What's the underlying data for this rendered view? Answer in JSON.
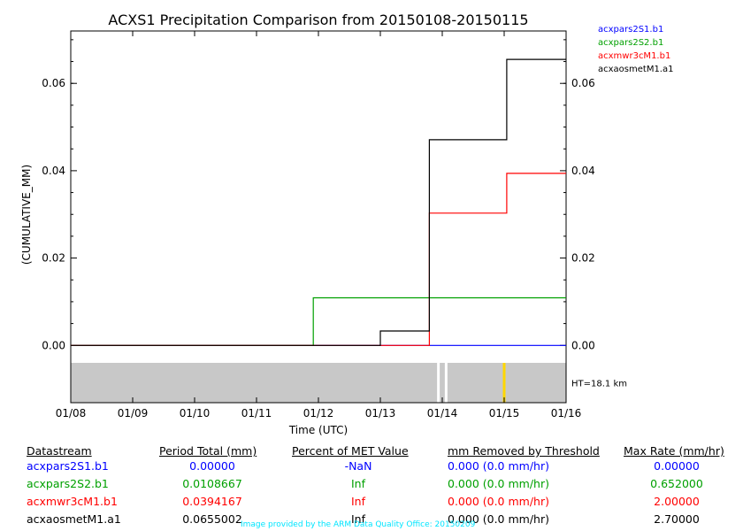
{
  "chart_data": {
    "type": "line",
    "title": "ACXS1 Precipitation Comparison from 20150108-20150115",
    "xlabel": "Time (UTC)",
    "ylabel": "(CUMULATIVE_MM)",
    "x_ticks": [
      "01/08",
      "01/09",
      "01/10",
      "01/11",
      "01/12",
      "01/13",
      "01/14",
      "01/15",
      "01/16"
    ],
    "x_range": [
      "01/08",
      "01/16"
    ],
    "ylim": [
      -0.004,
      0.072
    ],
    "y_ticks": [
      0.0,
      0.02,
      0.04,
      0.06
    ],
    "y_tick_labels": [
      "0.00",
      "0.02",
      "0.04",
      "0.06"
    ],
    "grid": false,
    "legend_position": "right, outside plot",
    "series": [
      {
        "name": "acxpars2S1.b1",
        "color": "#0000ff",
        "points": [
          [
            "01/08",
            0.0
          ],
          [
            "01/16",
            0.0
          ]
        ]
      },
      {
        "name": "acxpars2S2.b1",
        "color": "#00a000",
        "points": [
          [
            "01/08",
            0.0
          ],
          [
            "01/11 22:00",
            0.0
          ],
          [
            "01/11 22:00",
            0.0109
          ],
          [
            "01/16",
            0.0109
          ]
        ]
      },
      {
        "name": "acxmwr3cM1.b1",
        "color": "#ff0000",
        "points": [
          [
            "01/08",
            0.0
          ],
          [
            "01/13 19:00",
            0.0
          ],
          [
            "01/13 19:00",
            0.0303
          ],
          [
            "01/15 01:00",
            0.0303
          ],
          [
            "01/15 01:00",
            0.0394
          ],
          [
            "01/16",
            0.0394
          ]
        ]
      },
      {
        "name": "acxaosmetM1.a1",
        "color": "#000000",
        "points": [
          [
            "01/08",
            0.0
          ],
          [
            "01/13",
            0.0
          ],
          [
            "01/13",
            0.0033
          ],
          [
            "01/13 19:00",
            0.0033
          ],
          [
            "01/13 19:00",
            0.0471
          ],
          [
            "01/15 01:00",
            0.0471
          ],
          [
            "01/15 01:00",
            0.0655
          ],
          [
            "01/16",
            0.0655
          ]
        ]
      }
    ],
    "qc_strip": {
      "label": "HT=18.1 km",
      "background_color": "#c8c8c8",
      "marks": [
        {
          "x": "01/13 22:30",
          "color": "#ffffff"
        },
        {
          "x": "01/14 01:30",
          "color": "#ffffff"
        },
        {
          "x": "01/15",
          "color": "#ffd700"
        }
      ]
    }
  },
  "table": {
    "headers": [
      "Datastream",
      "Period Total (mm)",
      "Percent of MET Value",
      "mm Removed by Threshold",
      "Max Rate (mm/hr)"
    ],
    "rows": [
      {
        "color": "#0000ff",
        "cells": [
          "acxpars2S1.b1",
          "0.00000",
          "-NaN",
          "0.000 (0.0 mm/hr)",
          "0.00000"
        ]
      },
      {
        "color": "#00a000",
        "cells": [
          "acxpars2S2.b1",
          "0.0108667",
          "Inf",
          "0.000 (0.0 mm/hr)",
          "0.652000"
        ]
      },
      {
        "color": "#ff0000",
        "cells": [
          "acxmwr3cM1.b1",
          "0.0394167",
          "Inf",
          "0.000 (0.0 mm/hr)",
          "2.00000"
        ]
      },
      {
        "color": "#000000",
        "cells": [
          "acxaosmetM1.a1",
          "0.0655002",
          "Inf",
          "0.000 (0.0 mm/hr)",
          "2.70000"
        ]
      }
    ]
  },
  "credit": "Image provided by the ARM Data Quality Office: 20150209"
}
